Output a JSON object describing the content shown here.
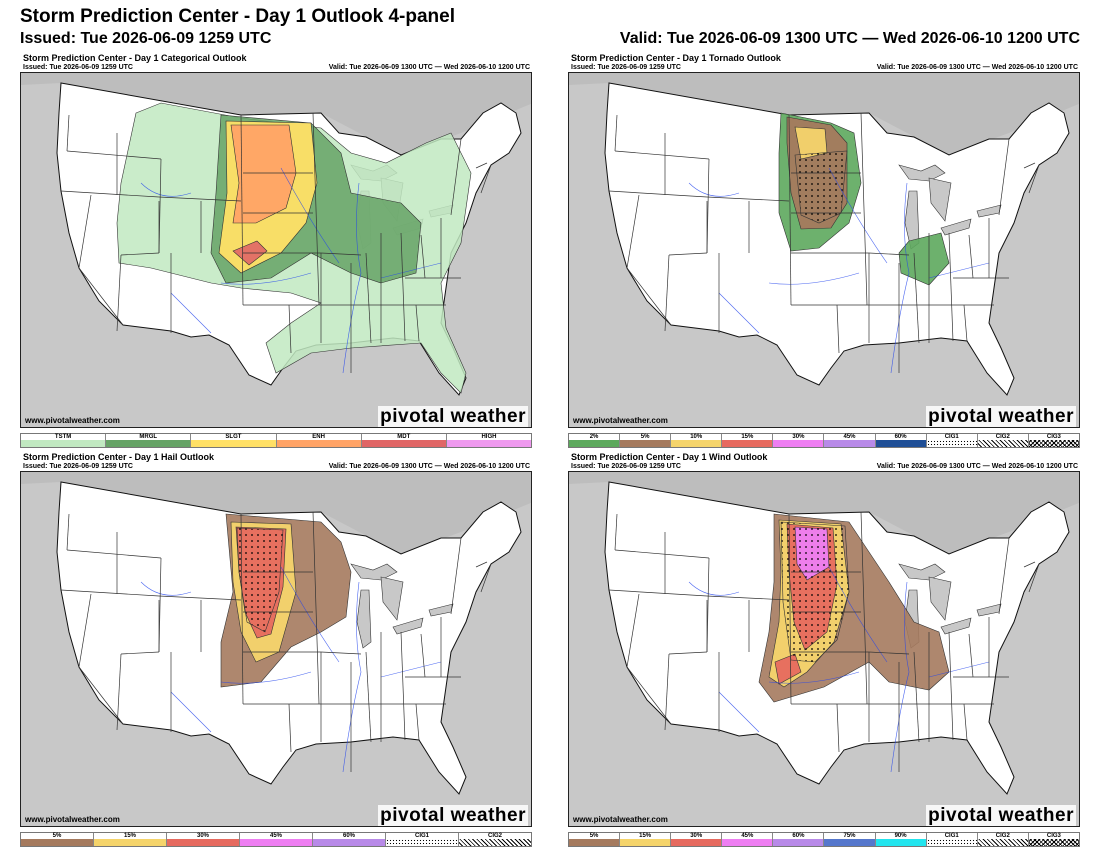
{
  "header": {
    "title": "Storm Prediction Center - Day 1 Outlook 4-panel",
    "issued": "Issued: Tue 2026-06-09 1259 UTC",
    "valid": "Valid: Tue 2026-06-09 1300 UTC — Wed 2026-06-10 1200 UTC"
  },
  "colors": {
    "land": "#ffffff",
    "ocean": "#c8c8c8",
    "tstm": "#c1e9c1",
    "mrgl": "#66a366",
    "slgt": "#ffe066",
    "enh": "#ffa366",
    "mdt": "#e06666",
    "high": "#ee99ee",
    "prob_brown": "#a57a5e",
    "prob_yellow": "#f5d46b",
    "prob_red": "#e66a5f",
    "prob_magenta": "#ee7ef2",
    "tor_green": "#5da95d"
  },
  "panels": [
    {
      "id": "categorical",
      "title": "Storm Prediction Center - Day 1 Categorical Outlook",
      "issued": "Issued: Tue 2026-06-09 1259 UTC",
      "valid": "Valid: Tue 2026-06-09 1300 UTC — Wed 2026-06-10 1200 UTC",
      "credit": "www.pivotalweather.com",
      "brand": "pivotal weather",
      "legend": [
        {
          "label": "TSTM",
          "color": "#c1e9c1"
        },
        {
          "label": "MRGL",
          "color": "#66a366"
        },
        {
          "label": "SLGT",
          "color": "#ffe066"
        },
        {
          "label": "ENH",
          "color": "#ffa366"
        },
        {
          "label": "MDT",
          "color": "#e06666"
        },
        {
          "label": "HIGH",
          "color": "#ee99ee"
        }
      ]
    },
    {
      "id": "tornado",
      "title": "Storm Prediction Center - Day 1 Tornado Outlook",
      "issued": "Issued: Tue 2026-06-09 1259 UTC",
      "valid": "Valid: Tue 2026-06-09 1300 UTC — Wed 2026-06-10 1200 UTC",
      "credit": "www.pivotalweather.com",
      "brand": "pivotal weather",
      "legend": [
        {
          "label": "2%",
          "color": "#5da95d"
        },
        {
          "label": "5%",
          "color": "#a57a5e"
        },
        {
          "label": "10%",
          "color": "#f5d46b"
        },
        {
          "label": "15%",
          "color": "#e66a5f"
        },
        {
          "label": "30%",
          "color": "#ee7ef2"
        },
        {
          "label": "45%",
          "color": "#b88ae8"
        },
        {
          "label": "60%",
          "color": "#1f4e96"
        },
        {
          "label": "CIG1",
          "color": "dots"
        },
        {
          "label": "CIG2",
          "color": "hatch"
        },
        {
          "label": "CIG3",
          "color": "cross"
        }
      ]
    },
    {
      "id": "hail",
      "title": "Storm Prediction Center - Day 1 Hail Outlook",
      "issued": "Issued: Tue 2026-06-09 1259 UTC",
      "valid": "Valid: Tue 2026-06-09 1300 UTC — Wed 2026-06-10 1200 UTC",
      "credit": "www.pivotalweather.com",
      "brand": "pivotal weather",
      "legend": [
        {
          "label": "5%",
          "color": "#a57a5e"
        },
        {
          "label": "15%",
          "color": "#f5d46b"
        },
        {
          "label": "30%",
          "color": "#e66a5f"
        },
        {
          "label": "45%",
          "color": "#ee7ef2"
        },
        {
          "label": "60%",
          "color": "#b88ae8"
        },
        {
          "label": "CIG1",
          "color": "dots"
        },
        {
          "label": "CIG2",
          "color": "hatch"
        }
      ]
    },
    {
      "id": "wind",
      "title": "Storm Prediction Center - Day 1 Wind Outlook",
      "issued": "Issued: Tue 2026-06-09 1259 UTC",
      "valid": "Valid: Tue 2026-06-09 1300 UTC — Wed 2026-06-10 1200 UTC",
      "credit": "www.pivotalweather.com",
      "brand": "pivotal weather",
      "legend": [
        {
          "label": "5%",
          "color": "#a57a5e"
        },
        {
          "label": "15%",
          "color": "#f5d46b"
        },
        {
          "label": "30%",
          "color": "#e66a5f"
        },
        {
          "label": "45%",
          "color": "#ee7ef2"
        },
        {
          "label": "60%",
          "color": "#b88ae8"
        },
        {
          "label": "75%",
          "color": "#5577cc"
        },
        {
          "label": "90%",
          "color": "#22e5ee"
        },
        {
          "label": "CIG1",
          "color": "dots"
        },
        {
          "label": "CIG2",
          "color": "hatch"
        },
        {
          "label": "CIG3",
          "color": "cross"
        }
      ]
    }
  ]
}
